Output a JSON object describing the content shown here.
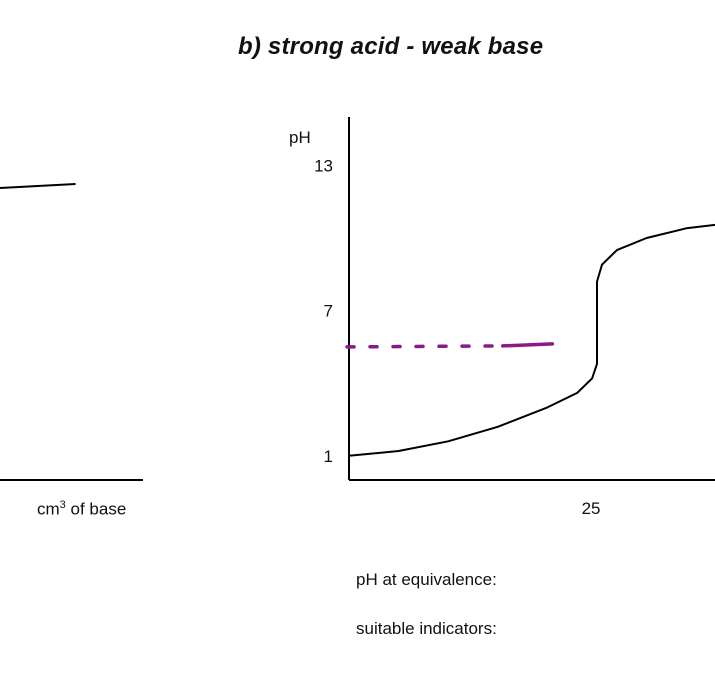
{
  "chart_data": [
    {
      "type": "line",
      "partially_visible": true,
      "xlabel": "cm3 of base",
      "xlabel_base": "cm",
      "xlabel_sup": "3",
      "xlabel_rest": " of base",
      "series": [
        {
          "x": [
            0,
            12
          ],
          "y": [
            11.6,
            12
          ]
        }
      ]
    },
    {
      "type": "line",
      "title": "b) strong acid - weak base",
      "ylabel": "pH",
      "y_ticks": [
        13,
        7,
        1
      ],
      "x_ticks": [
        25
      ],
      "xlim": [
        0,
        38
      ],
      "ylim": [
        0,
        15
      ],
      "series": [
        {
          "x": [
            0,
            5,
            10,
            15,
            20,
            23,
            24.5,
            25,
            25,
            25.5,
            27,
            30,
            34,
            38
          ],
          "y": [
            1.0,
            1.2,
            1.6,
            2.2,
            3.0,
            3.6,
            4.2,
            4.8,
            8.2,
            8.9,
            9.5,
            10.0,
            10.4,
            10.6
          ]
        }
      ],
      "annotation_line": {
        "color": "#8b1a89",
        "dashed_x": [
          -0.2,
          15.5
        ],
        "solid_x": [
          15.5,
          20.5
        ],
        "y": 5.5
      }
    }
  ],
  "labels": {
    "ph_at_equivalence": "pH at equivalence:",
    "suitable_indicators": "suitable indicators:"
  }
}
